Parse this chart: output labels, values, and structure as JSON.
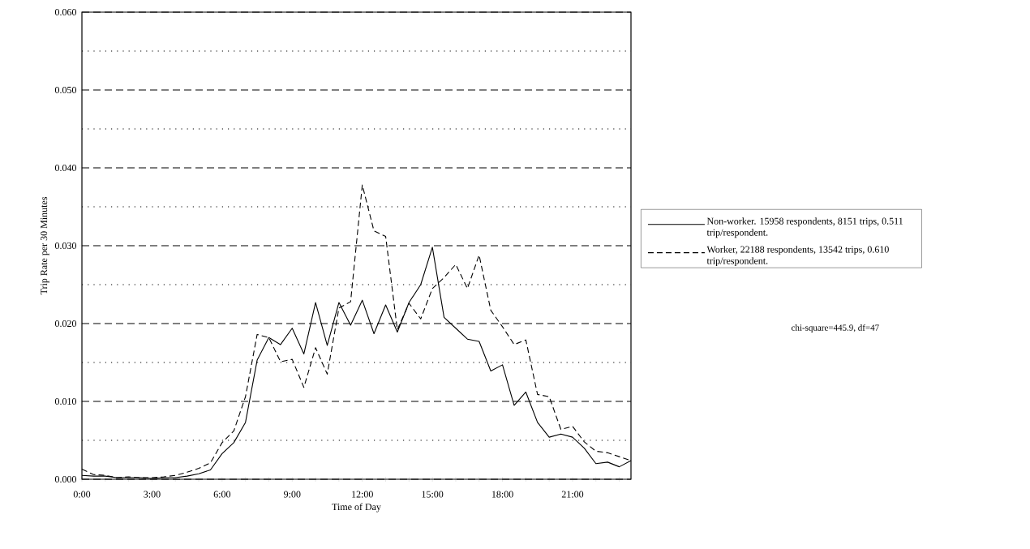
{
  "chart_data": {
    "type": "line",
    "xlabel": "Time of Day",
    "ylabel": "Trip Rate per 30 Minutes",
    "x": [
      0,
      0.5,
      1,
      1.5,
      2,
      2.5,
      3,
      3.5,
      4,
      4.5,
      5,
      5.5,
      6,
      6.5,
      7,
      7.5,
      8,
      8.5,
      9,
      9.5,
      10,
      10.5,
      11,
      11.5,
      12,
      12.5,
      13,
      13.5,
      14,
      14.5,
      15,
      15.5,
      16,
      16.5,
      17,
      17.5,
      18,
      18.5,
      19,
      19.5,
      20,
      20.5,
      21,
      21.5,
      22,
      22.5,
      23,
      23.5
    ],
    "series": [
      {
        "name": "Non-worker.   15958 respondents,  8151 trips, 0.511 trip/respondent.",
        "color": "#000000",
        "line_style": "solid",
        "values": [
          0.0005,
          0.0004,
          0.0004,
          0.0002,
          0.0002,
          0.0002,
          0.0001,
          0.0002,
          0.0002,
          0.0004,
          0.0007,
          0.0012,
          0.0033,
          0.0047,
          0.0073,
          0.0153,
          0.0182,
          0.0173,
          0.0194,
          0.0161,
          0.0227,
          0.0172,
          0.0227,
          0.0198,
          0.023,
          0.0187,
          0.0224,
          0.0189,
          0.0227,
          0.025,
          0.0298,
          0.0208,
          0.0194,
          0.018,
          0.0177,
          0.0139,
          0.0147,
          0.0095,
          0.0112,
          0.0073,
          0.0054,
          0.0058,
          0.0054,
          0.004,
          0.002,
          0.0022,
          0.0016,
          0.0024
        ]
      },
      {
        "name": "Worker,        22188 respondents,  13542 trips, 0.610 trip/respondent.",
        "color": "#000000",
        "line_style": "dashed",
        "values": [
          0.0013,
          0.0006,
          0.0005,
          0.0002,
          0.0003,
          0.0002,
          0.0002,
          0.0003,
          0.0005,
          0.0009,
          0.0014,
          0.0021,
          0.0047,
          0.0062,
          0.0106,
          0.0186,
          0.0182,
          0.0151,
          0.0154,
          0.0118,
          0.0169,
          0.0135,
          0.022,
          0.0228,
          0.0378,
          0.0319,
          0.0312,
          0.0192,
          0.0226,
          0.0206,
          0.0245,
          0.0259,
          0.0276,
          0.0245,
          0.0288,
          0.0217,
          0.0196,
          0.0173,
          0.0179,
          0.0109,
          0.0106,
          0.0064,
          0.0068,
          0.0048,
          0.0036,
          0.0034,
          0.0029,
          0.0024
        ]
      }
    ],
    "xlim": [
      0,
      23.5
    ],
    "ylim": [
      0,
      0.06
    ],
    "xticks": [
      {
        "value": 0,
        "label": "0:00"
      },
      {
        "value": 1,
        "label": null
      },
      {
        "value": 2,
        "label": null
      },
      {
        "value": 3,
        "label": "3:00"
      },
      {
        "value": 4,
        "label": null
      },
      {
        "value": 5,
        "label": null
      },
      {
        "value": 6,
        "label": "6:00"
      },
      {
        "value": 7,
        "label": null
      },
      {
        "value": 8,
        "label": null
      },
      {
        "value": 9,
        "label": "9:00"
      },
      {
        "value": 10,
        "label": null
      },
      {
        "value": 11,
        "label": null
      },
      {
        "value": 12,
        "label": "12:00"
      },
      {
        "value": 13,
        "label": null
      },
      {
        "value": 14,
        "label": null
      },
      {
        "value": 15,
        "label": "15:00"
      },
      {
        "value": 16,
        "label": null
      },
      {
        "value": 17,
        "label": null
      },
      {
        "value": 18,
        "label": "18:00"
      },
      {
        "value": 19,
        "label": null
      },
      {
        "value": 20,
        "label": null
      },
      {
        "value": 21,
        "label": "21:00"
      },
      {
        "value": 22,
        "label": null
      },
      {
        "value": 23,
        "label": null
      }
    ],
    "yticks": [
      {
        "value": 0,
        "label": "0.000"
      },
      {
        "value": 0.01,
        "label": "0.010"
      },
      {
        "value": 0.02,
        "label": "0.020"
      },
      {
        "value": 0.03,
        "label": "0.030"
      },
      {
        "value": 0.04,
        "label": "0.040"
      },
      {
        "value": 0.05,
        "label": "0.050"
      },
      {
        "value": 0.06,
        "label": "0.060"
      }
    ],
    "grid": "y",
    "legend": "right",
    "marker": "none",
    "annotations": [
      "chi-square=445.9, df=47"
    ]
  }
}
